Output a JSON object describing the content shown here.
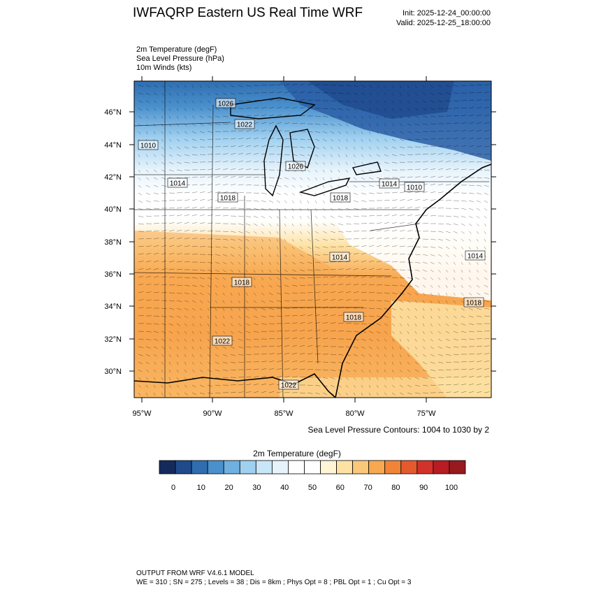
{
  "header": {
    "title": "IWFAQRP Eastern US Real Time WRF",
    "init": "Init: 2025-12-24_00:00:00",
    "valid": "Valid: 2025-12-25_18:00:00"
  },
  "fields": [
    "2m Temperature   (degF)",
    "Sea Level Pressure   (hPa)",
    "10m Winds   (kts)"
  ],
  "map": {
    "lat_labels": [
      "46°N",
      "44°N",
      "42°N",
      "40°N",
      "38°N",
      "36°N",
      "34°N",
      "32°N",
      "30°N"
    ],
    "lon_labels": [
      "95°W",
      "90°W",
      "85°W",
      "80°W",
      "75°W"
    ],
    "pressure_labels": [
      "1026",
      "1022",
      "1010",
      "1026",
      "1014",
      "1018",
      "1018",
      "1014",
      "1010",
      "1014",
      "1014",
      "1018",
      "1018",
      "1018",
      "1022",
      "1022"
    ],
    "contour_note": "Sea Level Pressure Contours: 1004 to 1030 by 2"
  },
  "colorbar": {
    "title": "2m Temperature  (degF)",
    "ticks": [
      "0",
      "10",
      "20",
      "30",
      "40",
      "50",
      "60",
      "70",
      "80",
      "90",
      "100"
    ],
    "colors": [
      "#152a5c",
      "#1f4a8c",
      "#2f6db0",
      "#4a90cc",
      "#6fb0e0",
      "#9fd0f0",
      "#c8e6f8",
      "#e6f3fb",
      "#ffffff",
      "#ffffff",
      "#fff4d6",
      "#fde2a4",
      "#fbc87a",
      "#f8a850",
      "#f28438",
      "#e55a2c",
      "#d2322a",
      "#b81c24",
      "#961a1e"
    ]
  },
  "footer": {
    "line1": "OUTPUT FROM WRF V4.6.1 MODEL",
    "line2": "WE = 310 ; SN = 275 ; Levels = 38 ; Dis = 8km ; Phys Opt = 8 ; PBL Opt = 1 ; Cu Opt = 3"
  }
}
